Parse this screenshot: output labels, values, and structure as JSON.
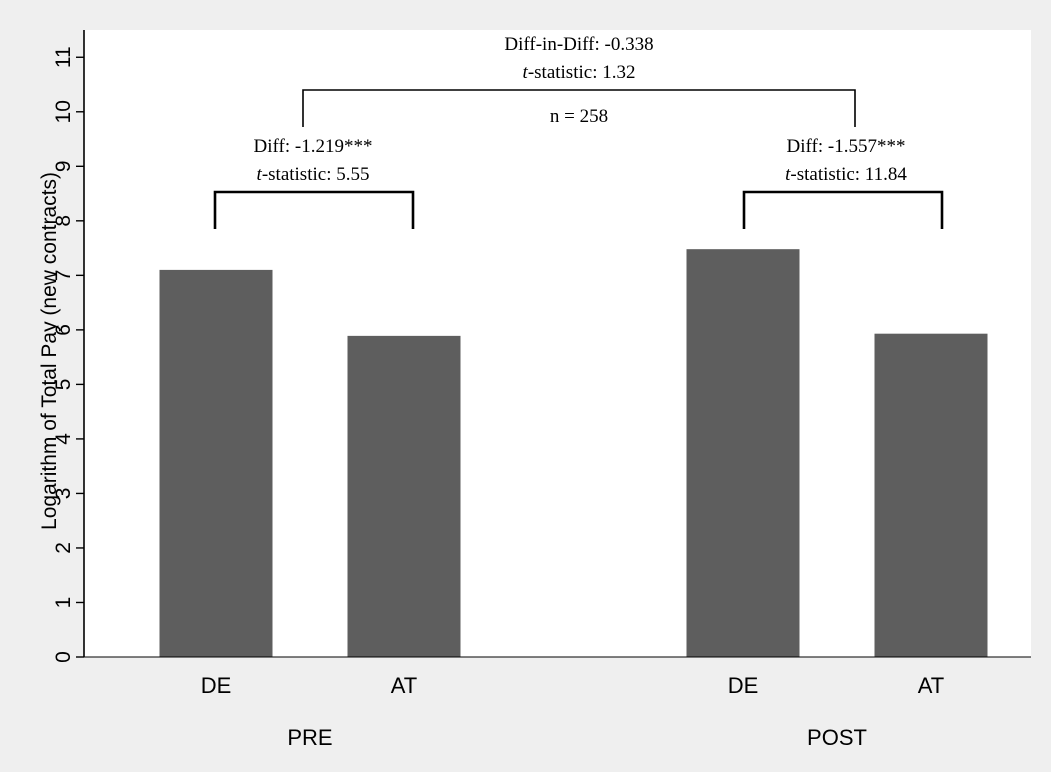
{
  "chart_data": {
    "type": "bar",
    "ylabel": "Logarithm of Total Pay (new contracts)",
    "ylim": [
      0,
      11.5
    ],
    "yticks": [
      0,
      1,
      2,
      3,
      4,
      5,
      6,
      7,
      8,
      9,
      10,
      11
    ],
    "groups": [
      {
        "label": "PRE",
        "categories": [
          "DE",
          "AT"
        ],
        "values": [
          7.1,
          5.89
        ]
      },
      {
        "label": "POST",
        "categories": [
          "DE",
          "AT"
        ],
        "values": [
          7.48,
          5.93
        ]
      }
    ],
    "bar_color": "#5e5e5e",
    "background_color": "#efefef",
    "plot_background_color": "#ffffff",
    "grid": false,
    "annotations": {
      "pre": {
        "diff_label": "Diff: -1.219***",
        "t_prefix": "t",
        "t_label": "-statistic: 5.55"
      },
      "post": {
        "diff_label": "Diff: -1.557***",
        "t_prefix": "t",
        "t_label": "-statistic: 11.84"
      },
      "did": {
        "diff_label": "Diff-in-Diff: -0.338",
        "t_prefix": "t",
        "t_label": "-statistic: 1.32",
        "n_label": "n = 258"
      }
    }
  }
}
